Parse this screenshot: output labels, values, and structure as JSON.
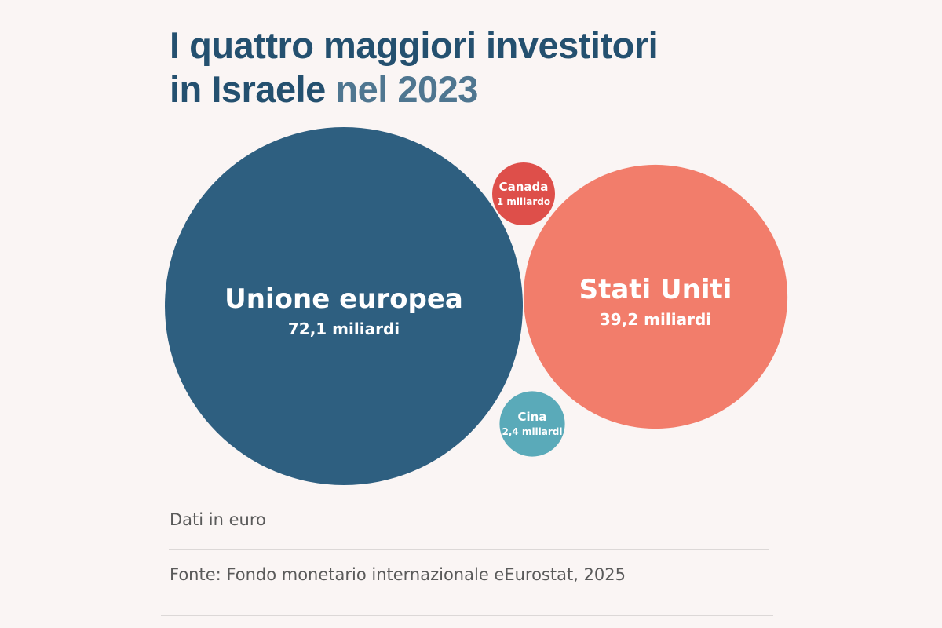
{
  "title": {
    "line1": "I quattro maggiori investitori",
    "line2a": "in Israele",
    "line2b": "nel 2023"
  },
  "chart_data": {
    "type": "bubble",
    "title": "I quattro maggiori investitori in Israele nel 2023",
    "unit": "miliardi di euro",
    "items": [
      {
        "name": "Unione europea",
        "value": 72.1,
        "label": "72,1 miliardi",
        "color": "#2e5f80"
      },
      {
        "name": "Stati Uniti",
        "value": 39.2,
        "label": "39,2 miliardi",
        "color": "#f27d6b"
      },
      {
        "name": "Canada",
        "value": 1,
        "label": "1 miliardo",
        "color": "#de4f4a"
      },
      {
        "name": "Cina",
        "value": 2.4,
        "label": "2,4 miliardi",
        "color": "#5aaab9"
      }
    ]
  },
  "footer": {
    "note": "Dati in euro",
    "source": "Fonte: Fondo monetario internazionale eEurostat, 2025"
  }
}
